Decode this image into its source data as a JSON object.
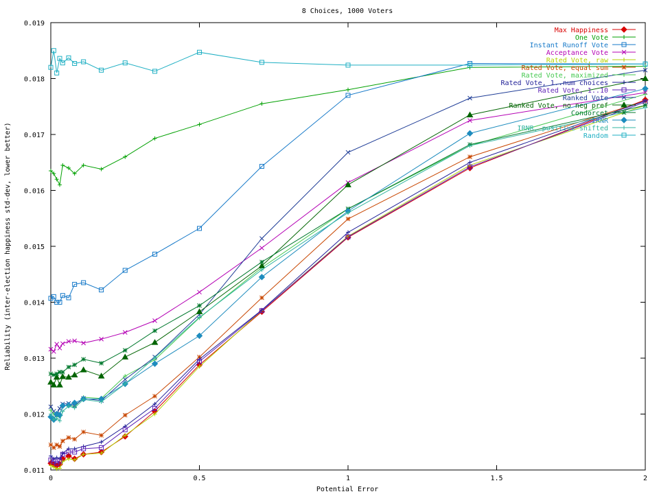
{
  "chart_data": {
    "type": "line",
    "title": "8 Choices, 1000 Voters",
    "xlabel": "Potential Error",
    "ylabel": "Reliability (inter-election happiness std-dev, lower better)",
    "xlim": [
      0,
      2
    ],
    "ylim": [
      0.011,
      0.019
    ],
    "xticks": [
      0,
      0.5,
      1,
      1.5,
      2
    ],
    "xtick_labels": [
      "0",
      "0.5",
      "1",
      "1.5",
      "2"
    ],
    "yticks": [
      0.011,
      0.012,
      0.013,
      0.014,
      0.015,
      0.016,
      0.017,
      0.018,
      0.019
    ],
    "ytick_labels": [
      "0.011",
      "0.012",
      "0.013",
      "0.014",
      "0.015",
      "0.016",
      "0.017",
      "0.018",
      "0.019"
    ],
    "grid": false,
    "legend_position": "top-right",
    "x": [
      0,
      0.01,
      0.02,
      0.03,
      0.04,
      0.06,
      0.08,
      0.11,
      0.17,
      0.25,
      0.35,
      0.5,
      0.71,
      1,
      1.41,
      2
    ],
    "series": [
      {
        "name": "Max Happiness",
        "color": "#d90000",
        "marker": "diamond",
        "values": [
          0.01112,
          0.0111,
          0.01108,
          0.0111,
          0.0112,
          0.01125,
          0.0112,
          0.01128,
          0.01132,
          0.0116,
          0.01205,
          0.01288,
          0.01383,
          0.01516,
          0.0164,
          0.01762
        ]
      },
      {
        "name": "One Vote",
        "color": "#00a000",
        "marker": "plus",
        "values": [
          0.01635,
          0.0163,
          0.0162,
          0.0161,
          0.01645,
          0.0164,
          0.0163,
          0.01645,
          0.01638,
          0.0166,
          0.01693,
          0.01718,
          0.01755,
          0.0178,
          0.0182,
          0.01822
        ]
      },
      {
        "name": "Instant Runoff Vote",
        "color": "#1478c8",
        "marker": "square",
        "values": [
          0.01407,
          0.0141,
          0.014,
          0.014,
          0.01412,
          0.01408,
          0.01432,
          0.01435,
          0.01422,
          0.01457,
          0.01486,
          0.01532,
          0.01643,
          0.0177,
          0.01827,
          0.01826
        ]
      },
      {
        "name": "Acceptance Vote",
        "color": "#b400b4",
        "marker": "x",
        "values": [
          0.01316,
          0.01312,
          0.01325,
          0.01318,
          0.01326,
          0.0133,
          0.01331,
          0.01327,
          0.01334,
          0.01346,
          0.01367,
          0.01418,
          0.01497,
          0.01614,
          0.01725,
          0.01775
        ]
      },
      {
        "name": "Rated Vote, raw",
        "color": "#b4d200",
        "marker": "plus",
        "values": [
          0.01108,
          0.01105,
          0.01102,
          0.01103,
          0.01115,
          0.0112,
          0.01118,
          0.01128,
          0.0113,
          0.01162,
          0.012,
          0.01285,
          0.01385,
          0.01518,
          0.01645,
          0.01752
        ]
      },
      {
        "name": "Rated Vote, equal sum",
        "color": "#c84600",
        "marker": "star",
        "values": [
          0.01145,
          0.0114,
          0.01145,
          0.01142,
          0.01152,
          0.01158,
          0.01155,
          0.01168,
          0.01162,
          0.01198,
          0.01232,
          0.01302,
          0.01408,
          0.01549,
          0.0166,
          0.0176
        ]
      },
      {
        "name": "Rated Vote, maximized",
        "color": "#46c850",
        "marker": "plus",
        "values": [
          0.01207,
          0.012,
          0.01195,
          0.012,
          0.01215,
          0.01216,
          0.01213,
          0.0123,
          0.01228,
          0.01268,
          0.01297,
          0.01372,
          0.01462,
          0.01567,
          0.0168,
          0.01772
        ]
      },
      {
        "name": "Rated Vote, 1..num choices",
        "color": "#1e1e96",
        "marker": "plus",
        "values": [
          0.01125,
          0.0112,
          0.01122,
          0.0112,
          0.0113,
          0.01138,
          0.01138,
          0.01142,
          0.0115,
          0.01178,
          0.01218,
          0.01298,
          0.01386,
          0.01525,
          0.0165,
          0.0176
        ]
      },
      {
        "name": "Rated Vote, 1..10",
        "color": "#5a1eb4",
        "marker": "square",
        "values": [
          0.01118,
          0.01115,
          0.01112,
          0.01116,
          0.01128,
          0.01132,
          0.01132,
          0.01138,
          0.0114,
          0.01172,
          0.0121,
          0.01294,
          0.01385,
          0.01517,
          0.01642,
          0.01758
        ]
      },
      {
        "name": "Ranked Vote",
        "color": "#1e3c96",
        "marker": "x",
        "values": [
          0.01213,
          0.01205,
          0.012,
          0.0121,
          0.01218,
          0.01219,
          0.01215,
          0.01228,
          0.01224,
          0.01262,
          0.01302,
          0.01378,
          0.01514,
          0.01668,
          0.01765,
          0.01815
        ]
      },
      {
        "name": "Ranked Vote, no neg pref",
        "color": "#006400",
        "marker": "triangle",
        "values": [
          0.01257,
          0.01252,
          0.01266,
          0.01252,
          0.01267,
          0.01266,
          0.0127,
          0.01279,
          0.01268,
          0.01302,
          0.01328,
          0.01383,
          0.01465,
          0.0161,
          0.01735,
          0.018
        ]
      },
      {
        "name": "Condorcet",
        "color": "#00782d",
        "marker": "star",
        "values": [
          0.01272,
          0.0127,
          0.01272,
          0.01275,
          0.01275,
          0.01284,
          0.01288,
          0.01298,
          0.01291,
          0.01314,
          0.01349,
          0.01394,
          0.01472,
          0.01567,
          0.01682,
          0.01752
        ]
      },
      {
        "name": "IRNR",
        "color": "#1e8cbe",
        "marker": "diamond",
        "values": [
          0.01195,
          0.0119,
          0.012,
          0.01198,
          0.01215,
          0.01216,
          0.0122,
          0.01227,
          0.01227,
          0.01254,
          0.0129,
          0.0134,
          0.01445,
          0.01563,
          0.01702,
          0.01782
        ]
      },
      {
        "name": "IRNR, positive shifted",
        "color": "#32b4a0",
        "marker": "plus",
        "values": [
          0.012,
          0.0119,
          0.01192,
          0.01188,
          0.01205,
          0.01214,
          0.01211,
          0.01226,
          0.01222,
          0.01254,
          0.01301,
          0.01373,
          0.01458,
          0.0156,
          0.0168,
          0.01748
        ]
      },
      {
        "name": "Random",
        "color": "#1eafc3",
        "marker": "square",
        "values": [
          0.0182,
          0.0185,
          0.0181,
          0.01836,
          0.01828,
          0.01837,
          0.01827,
          0.0183,
          0.01815,
          0.01828,
          0.01813,
          0.01847,
          0.01829,
          0.01824,
          0.01824,
          0.01826
        ]
      }
    ]
  }
}
